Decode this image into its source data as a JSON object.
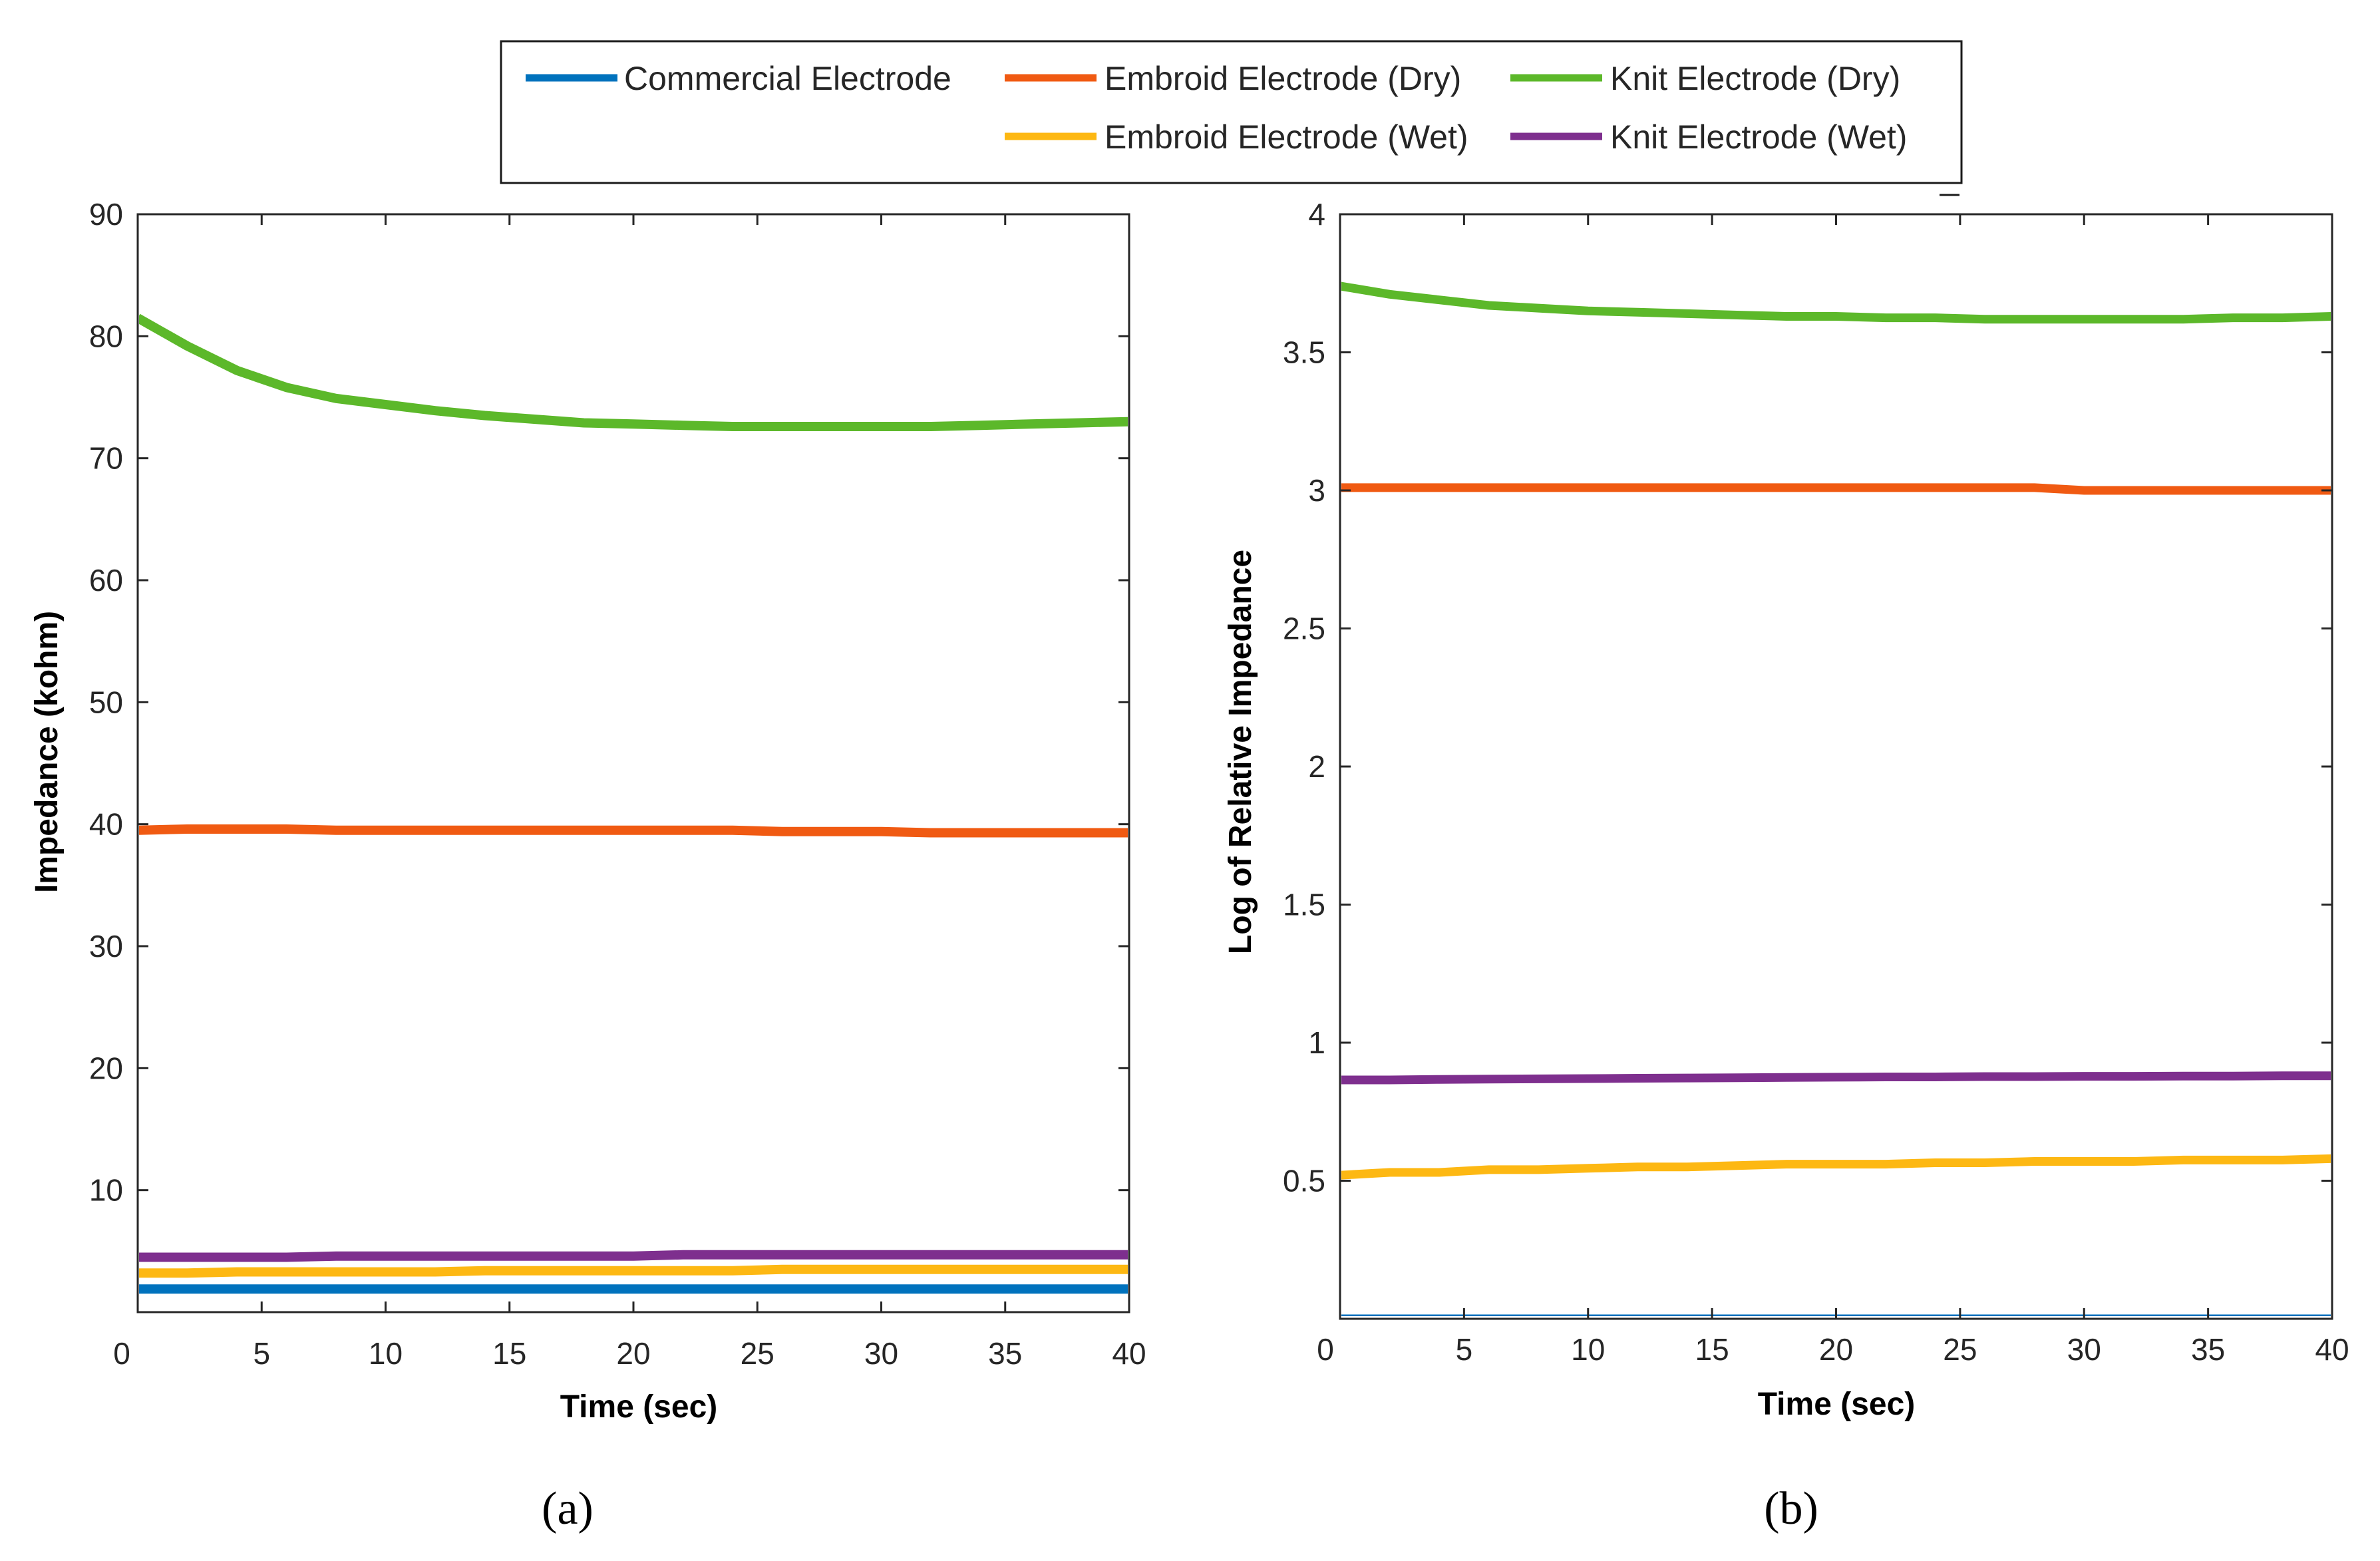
{
  "legend": {
    "entries": [
      {
        "label": "Commercial Electrode",
        "color": "#0072bd"
      },
      {
        "label": "Embroid Electrode (Dry)",
        "color": "#f05a12"
      },
      {
        "label": "Knit Electrode (Dry)",
        "color": "#5cb82a"
      },
      {
        "label": "Embroid Electrode (Wet)",
        "color": "#fdb813"
      },
      {
        "label": "Knit Electrode (Wet)",
        "color": "#7e2f8e"
      }
    ]
  },
  "chart_data": [
    {
      "type": "line",
      "panel_label": "(a)",
      "xlabel": "Time (sec)",
      "ylabel": "Impedance (kohm)",
      "xlim": [
        0,
        40
      ],
      "ylim": [
        0,
        90
      ],
      "xticks": [
        0,
        5,
        10,
        15,
        20,
        25,
        30,
        35,
        40
      ],
      "yticks": [
        10,
        20,
        30,
        40,
        50,
        60,
        70,
        80,
        90
      ],
      "x": [
        0,
        2,
        4,
        6,
        8,
        10,
        12,
        14,
        16,
        18,
        20,
        22,
        24,
        26,
        28,
        30,
        32,
        34,
        36,
        38,
        40
      ],
      "series": [
        {
          "name": "Commercial Electrode",
          "values": [
            1.9,
            1.9,
            1.9,
            1.9,
            1.9,
            1.9,
            1.9,
            1.9,
            1.9,
            1.9,
            1.9,
            1.9,
            1.9,
            1.9,
            1.9,
            1.9,
            1.9,
            1.9,
            1.9,
            1.9,
            1.9
          ]
        },
        {
          "name": "Embroid Electrode (Dry)",
          "values": [
            39.5,
            39.6,
            39.6,
            39.6,
            39.5,
            39.5,
            39.5,
            39.5,
            39.5,
            39.5,
            39.5,
            39.5,
            39.5,
            39.4,
            39.4,
            39.4,
            39.3,
            39.3,
            39.3,
            39.3,
            39.3
          ]
        },
        {
          "name": "Knit Electrode (Dry)",
          "values": [
            81.5,
            79.2,
            77.2,
            75.8,
            74.9,
            74.4,
            73.9,
            73.5,
            73.2,
            72.9,
            72.8,
            72.7,
            72.6,
            72.6,
            72.6,
            72.6,
            72.6,
            72.7,
            72.8,
            72.9,
            73.0
          ]
        },
        {
          "name": "Embroid Electrode (Wet)",
          "values": [
            3.2,
            3.2,
            3.3,
            3.3,
            3.3,
            3.3,
            3.3,
            3.4,
            3.4,
            3.4,
            3.4,
            3.4,
            3.4,
            3.5,
            3.5,
            3.5,
            3.5,
            3.5,
            3.5,
            3.5,
            3.5
          ]
        },
        {
          "name": "Knit Electrode (Wet)",
          "values": [
            4.5,
            4.5,
            4.5,
            4.5,
            4.6,
            4.6,
            4.6,
            4.6,
            4.6,
            4.6,
            4.6,
            4.7,
            4.7,
            4.7,
            4.7,
            4.7,
            4.7,
            4.7,
            4.7,
            4.7,
            4.7
          ]
        }
      ]
    },
    {
      "type": "line",
      "panel_label": "(b)",
      "xlabel": "Time (sec)",
      "ylabel": "Log of  Relative Impedance",
      "xlim": [
        0,
        40
      ],
      "ylim": [
        0,
        4
      ],
      "xticks": [
        0,
        5,
        10,
        15,
        20,
        25,
        30,
        35,
        40
      ],
      "yticks": [
        0.5,
        1,
        1.5,
        2,
        2.5,
        3,
        3.5,
        4
      ],
      "x": [
        0,
        2,
        4,
        6,
        8,
        10,
        12,
        14,
        16,
        18,
        20,
        22,
        24,
        26,
        28,
        30,
        32,
        34,
        36,
        38,
        40
      ],
      "series": [
        {
          "name": "Commercial Electrode",
          "values": [
            0,
            0,
            0,
            0,
            0,
            0,
            0,
            0,
            0,
            0,
            0,
            0,
            0,
            0,
            0,
            0,
            0,
            0,
            0,
            0,
            0
          ]
        },
        {
          "name": "Embroid Electrode (Dry)",
          "values": [
            3.01,
            3.01,
            3.01,
            3.01,
            3.01,
            3.01,
            3.01,
            3.01,
            3.01,
            3.01,
            3.01,
            3.01,
            3.01,
            3.01,
            3.01,
            3.0,
            3.0,
            3.0,
            3.0,
            3.0,
            3.0
          ]
        },
        {
          "name": "Knit Electrode (Dry)",
          "values": [
            3.74,
            3.71,
            3.69,
            3.67,
            3.66,
            3.65,
            3.645,
            3.64,
            3.635,
            3.63,
            3.63,
            3.625,
            3.625,
            3.62,
            3.62,
            3.62,
            3.62,
            3.62,
            3.625,
            3.625,
            3.63
          ]
        },
        {
          "name": "Embroid Electrode (Wet)",
          "values": [
            0.52,
            0.53,
            0.53,
            0.54,
            0.54,
            0.545,
            0.55,
            0.55,
            0.555,
            0.56,
            0.56,
            0.56,
            0.565,
            0.565,
            0.57,
            0.57,
            0.57,
            0.575,
            0.575,
            0.575,
            0.58
          ]
        },
        {
          "name": "Knit Electrode (Wet)",
          "values": [
            0.865,
            0.865,
            0.867,
            0.868,
            0.869,
            0.87,
            0.871,
            0.872,
            0.873,
            0.874,
            0.875,
            0.876,
            0.876,
            0.877,
            0.877,
            0.878,
            0.878,
            0.879,
            0.879,
            0.88,
            0.88
          ]
        }
      ]
    }
  ]
}
